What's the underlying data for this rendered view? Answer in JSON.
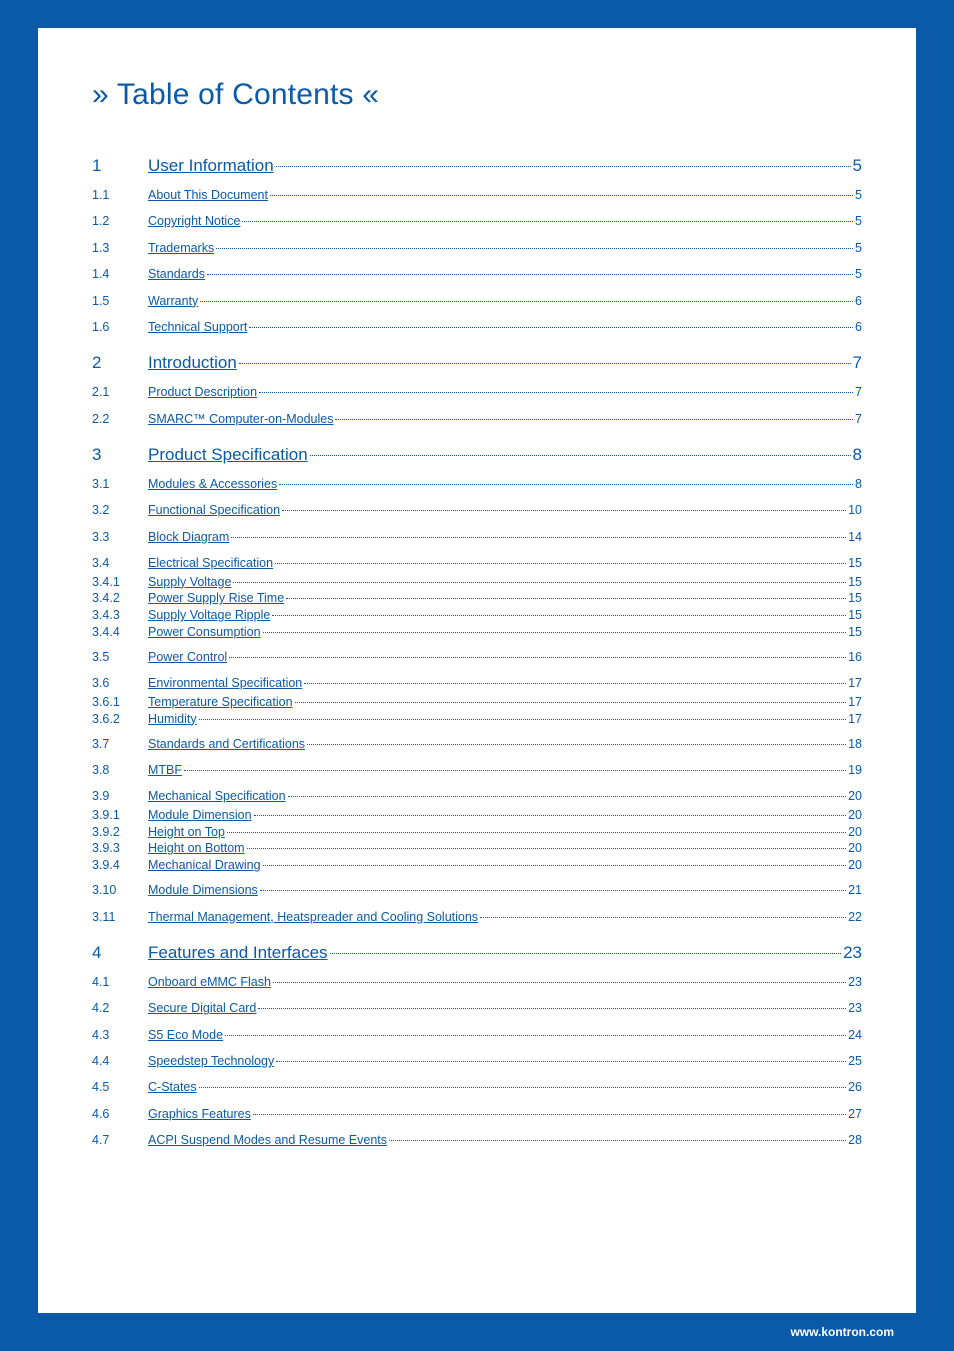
{
  "title": "» Table of Contents «",
  "footer": "www.kontron.com",
  "colors": {
    "brand": "#0a5aa8",
    "page_bg": "#ffffff",
    "text": "#0a5aa8"
  },
  "typography": {
    "title_fontsize": 30,
    "section_fontsize": 17,
    "entry_fontsize": 12.5,
    "footer_fontsize": 12
  },
  "toc": [
    {
      "num": "1",
      "label": "User Information",
      "page": "5",
      "children": [
        {
          "num": "1.1",
          "label": "About This Document",
          "page": "5"
        },
        {
          "num": "1.2",
          "label": "Copyright Notice",
          "page": "5"
        },
        {
          "num": "1.3",
          "label": "Trademarks",
          "page": "5"
        },
        {
          "num": "1.4",
          "label": "Standards",
          "page": "5"
        },
        {
          "num": "1.5",
          "label": "Warranty",
          "page": "6"
        },
        {
          "num": "1.6",
          "label": "Technical Support",
          "page": "6"
        }
      ]
    },
    {
      "num": "2",
      "label": "Introduction",
      "page": "7",
      "children": [
        {
          "num": "2.1",
          "label": "Product Description",
          "page": "7"
        },
        {
          "num": "2.2",
          "label": "SMARC™ Computer-on-Modules",
          "page": "7"
        }
      ]
    },
    {
      "num": "3",
      "label": "Product Specification",
      "page": "8",
      "children": [
        {
          "num": "3.1",
          "label": "Modules & Accessories",
          "page": "8"
        },
        {
          "num": "3.2",
          "label": "Functional Specification",
          "page": "10"
        },
        {
          "num": "3.3",
          "label": "Block Diagram",
          "page": "14"
        },
        {
          "num": "3.4",
          "label": "Electrical Specification",
          "page": "15",
          "children": [
            {
              "num": "3.4.1",
              "label": "Supply Voltage",
              "page": "15"
            },
            {
              "num": "3.4.2",
              "label": "Power Supply Rise Time",
              "page": "15"
            },
            {
              "num": "3.4.3",
              "label": "Supply Voltage Ripple",
              "page": "15"
            },
            {
              "num": "3.4.4",
              "label": "Power Consumption",
              "page": "15"
            }
          ]
        },
        {
          "num": "3.5",
          "label": "Power Control",
          "page": "16"
        },
        {
          "num": "3.6",
          "label": "Environmental Specification",
          "page": "17",
          "children": [
            {
              "num": "3.6.1",
              "label": "Temperature Specification",
              "page": "17"
            },
            {
              "num": "3.6.2",
              "label": "Humidity",
              "page": "17"
            }
          ]
        },
        {
          "num": "3.7",
          "label": "Standards and Certifications",
          "page": "18"
        },
        {
          "num": "3.8",
          "label": "MTBF",
          "page": "19"
        },
        {
          "num": "3.9",
          "label": "Mechanical Specification",
          "page": "20",
          "children": [
            {
              "num": "3.9.1",
              "label": "Module Dimension",
              "page": "20"
            },
            {
              "num": "3.9.2",
              "label": "Height on Top",
              "page": "20"
            },
            {
              "num": "3.9.3",
              "label": "Height on Bottom",
              "page": "20"
            },
            {
              "num": "3.9.4",
              "label": "Mechanical Drawing",
              "page": "20"
            }
          ]
        },
        {
          "num": "3.10",
          "label": "Module Dimensions",
          "page": "21"
        },
        {
          "num": "3.11",
          "label": "Thermal Management, Heatspreader and Cooling Solutions",
          "page": "22"
        }
      ]
    },
    {
      "num": "4",
      "label": "Features and Interfaces",
      "page": "23",
      "children": [
        {
          "num": "4.1",
          "label": "Onboard eMMC Flash",
          "page": "23"
        },
        {
          "num": "4.2",
          "label": "Secure Digital Card",
          "page": "23"
        },
        {
          "num": "4.3",
          "label": "S5 Eco Mode",
          "page": "24"
        },
        {
          "num": "4.4",
          "label": "Speedstep Technology",
          "page": "25"
        },
        {
          "num": "4.5",
          "label": "C-States",
          "page": "26"
        },
        {
          "num": "4.6",
          "label": "Graphics Features",
          "page": "27"
        },
        {
          "num": "4.7",
          "label": "ACPI Suspend Modes and Resume Events",
          "page": "28"
        }
      ]
    }
  ]
}
